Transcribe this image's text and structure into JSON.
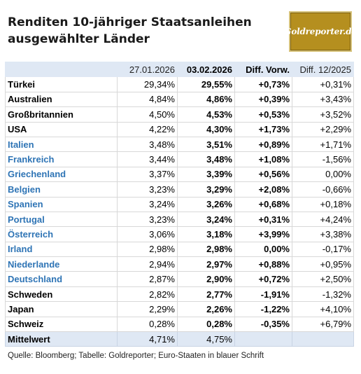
{
  "title": {
    "line1": "Renditen 10-jähriger Staatsanleihen",
    "line2": "ausgewählter Länder"
  },
  "logo": {
    "text": "Goldreporter.de",
    "color": "#b58f1f"
  },
  "colors": {
    "euro_country": "#2e74b5",
    "header_bg": "#dfe8f4"
  },
  "table": {
    "headers": [
      "",
      "27.01.2026",
      "03.02.2026",
      "Diff. Vorw.",
      "Diff. 12/2025"
    ],
    "rows": [
      {
        "country": "Türkei",
        "euro": false,
        "v1": "29,34%",
        "v2": "29,55%",
        "d1": "+0,73%",
        "d2": "+0,31%"
      },
      {
        "country": "Australien",
        "euro": false,
        "v1": "4,84%",
        "v2": "4,86%",
        "d1": "+0,39%",
        "d2": "+3,43%"
      },
      {
        "country": "Großbritannien",
        "euro": false,
        "v1": "4,50%",
        "v2": "4,53%",
        "d1": "+0,53%",
        "d2": "+3,52%"
      },
      {
        "country": "USA",
        "euro": false,
        "v1": "4,22%",
        "v2": "4,30%",
        "d1": "+1,73%",
        "d2": "+2,29%"
      },
      {
        "country": "Italien",
        "euro": true,
        "v1": "3,48%",
        "v2": "3,51%",
        "d1": "+0,89%",
        "d2": "+1,71%"
      },
      {
        "country": "Frankreich",
        "euro": true,
        "v1": "3,44%",
        "v2": "3,48%",
        "d1": "+1,08%",
        "d2": "-1,56%"
      },
      {
        "country": "Griechenland",
        "euro": true,
        "v1": "3,37%",
        "v2": "3,39%",
        "d1": "+0,56%",
        "d2": "0,00%"
      },
      {
        "country": "Belgien",
        "euro": true,
        "v1": "3,23%",
        "v2": "3,29%",
        "d1": "+2,08%",
        "d2": "-0,66%"
      },
      {
        "country": "Spanien",
        "euro": true,
        "v1": "3,24%",
        "v2": "3,26%",
        "d1": "+0,68%",
        "d2": "+0,18%"
      },
      {
        "country": "Portugal",
        "euro": true,
        "v1": "3,23%",
        "v2": "3,24%",
        "d1": "+0,31%",
        "d2": "+4,24%"
      },
      {
        "country": "Österreich",
        "euro": true,
        "v1": "3,06%",
        "v2": "3,18%",
        "d1": "+3,99%",
        "d2": "+3,38%"
      },
      {
        "country": "Irland",
        "euro": true,
        "v1": "2,98%",
        "v2": "2,98%",
        "d1": "0,00%",
        "d2": "-0,17%"
      },
      {
        "country": "Niederlande",
        "euro": true,
        "v1": "2,94%",
        "v2": "2,97%",
        "d1": "+0,88%",
        "d2": "+0,95%"
      },
      {
        "country": "Deutschland",
        "euro": true,
        "v1": "2,87%",
        "v2": "2,90%",
        "d1": "+0,72%",
        "d2": "+2,50%"
      },
      {
        "country": "Schweden",
        "euro": false,
        "v1": "2,82%",
        "v2": "2,77%",
        "d1": "-1,91%",
        "d2": "-1,32%"
      },
      {
        "country": "Japan",
        "euro": false,
        "v1": "2,29%",
        "v2": "2,26%",
        "d1": "-1,22%",
        "d2": "+4,10%"
      },
      {
        "country": "Schweiz",
        "euro": false,
        "v1": "0,28%",
        "v2": "0,28%",
        "d1": "-0,35%",
        "d2": "+6,79%"
      }
    ],
    "average": {
      "label": "Mittelwert",
      "v1": "4,71%",
      "v2": "4,75%",
      "d1": "",
      "d2": ""
    }
  },
  "footer": "Quelle: Bloomberg; Tabelle: Goldreporter; Euro-Staaten in blauer Schrift"
}
